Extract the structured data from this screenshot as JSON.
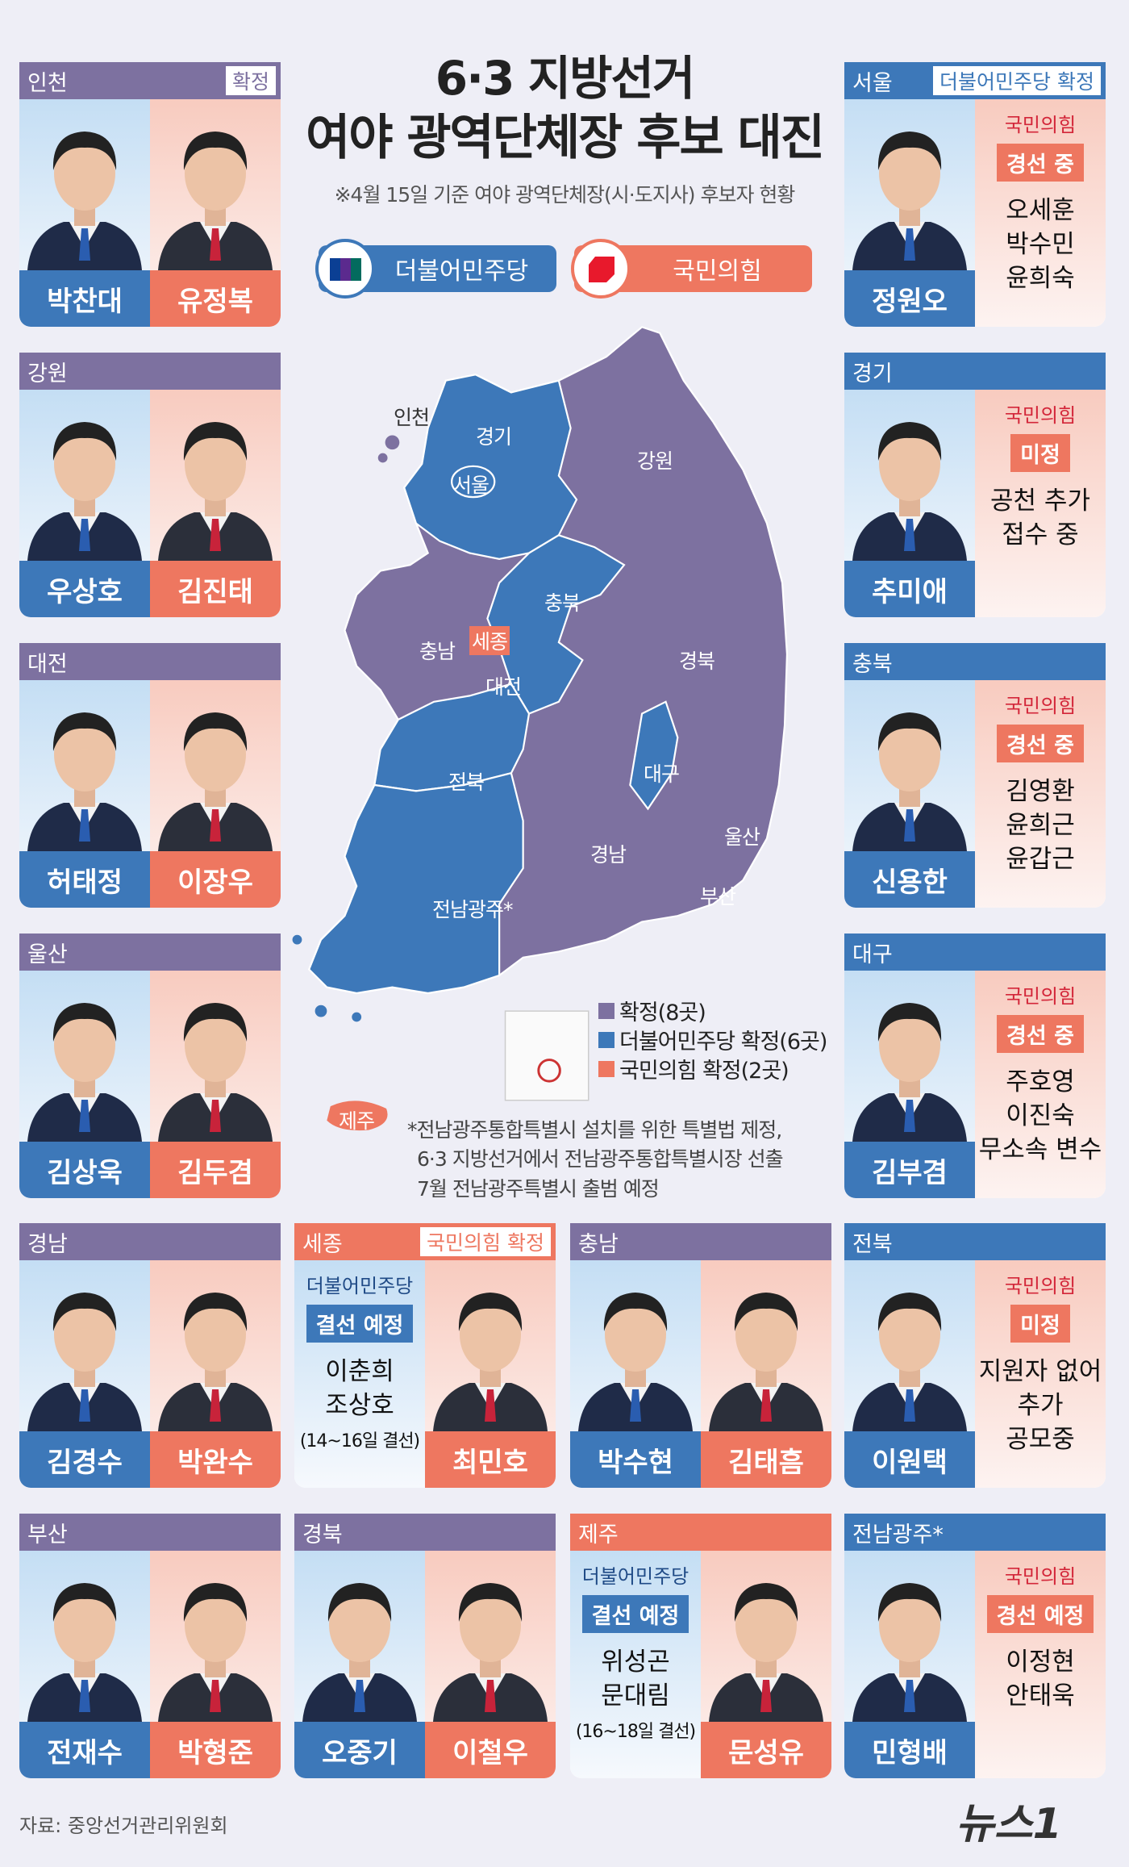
{
  "title": {
    "line1": "6·3 지방선거",
    "line2": "여야 광역단체장 후보 대진"
  },
  "subtitle": "※4월 15일 기준 여야 광역단체장(시·도지사) 후보자 현황",
  "parties": {
    "dem": "더불어민주당",
    "ppp": "국민의힘"
  },
  "colors": {
    "both_header": "#7d71a0",
    "dem": "#3d78b9",
    "ppp": "#ee7760",
    "ppp_text": "#d32639",
    "dem_text": "#1f4a86",
    "background": "#eeeef6"
  },
  "map": {
    "labels": {
      "incheon": "인천",
      "gyeonggi": "경기",
      "seoul": "서울",
      "gangwon": "강원",
      "chungbuk": "충북",
      "chungnam": "충남",
      "sejong": "세종",
      "daejeon": "대전",
      "gyeongbuk": "경북",
      "jeonbuk": "전북",
      "daegu": "대구",
      "ulsan": "울산",
      "gyeongnam": "경남",
      "busan": "부산",
      "jeonnam": "전남광주*",
      "jeju": "제주"
    },
    "legend": [
      "확정(8곳)",
      "더불어민주당 확정(6곳)",
      "국민의힘 확정(2곳)"
    ],
    "footnote": [
      "*전남광주통합특별시 설치를 위한 특별법 제정,",
      "6·3 지방선거에서 전남광주통합특별시장 선출",
      "7월 전남광주특별시 출범 예정"
    ]
  },
  "cards": [
    {
      "region": "인천",
      "badge": "확정",
      "type": "both",
      "dem_name": "박찬대",
      "ppp_name": "유정복"
    },
    {
      "region": "강원",
      "type": "both",
      "dem_name": "우상호",
      "ppp_name": "김진태"
    },
    {
      "region": "대전",
      "type": "both",
      "dem_name": "허태정",
      "ppp_name": "이장우"
    },
    {
      "region": "울산",
      "type": "both",
      "dem_name": "김상욱",
      "ppp_name": "김두겸"
    },
    {
      "region": "서울",
      "badge": "더불어민주당 확정",
      "type": "dem",
      "dem_name": "정원오",
      "pending": {
        "party": "국민의힘",
        "status": "경선 중",
        "names": [
          "오세훈",
          "박수민",
          "윤희숙"
        ]
      }
    },
    {
      "region": "경기",
      "type": "dem",
      "dem_name": "추미애",
      "pending": {
        "party": "국민의힘",
        "status": "미정",
        "names": [
          "공천 추가",
          "접수 중"
        ]
      }
    },
    {
      "region": "충북",
      "type": "dem",
      "dem_name": "신용한",
      "pending": {
        "party": "국민의힘",
        "status": "경선 중",
        "names": [
          "김영환",
          "윤희근",
          "윤갑근"
        ]
      }
    },
    {
      "region": "대구",
      "type": "dem",
      "dem_name": "김부겸",
      "pending": {
        "party": "국민의힘",
        "status": "경선 중",
        "names": [
          "주호영",
          "이진숙",
          "무소속 변수"
        ]
      }
    },
    {
      "region": "경남",
      "type": "both",
      "dem_name": "김경수",
      "ppp_name": "박완수"
    },
    {
      "region": "세종",
      "badge": "국민의힘 확정",
      "type": "ppp",
      "ppp_name": "최민호",
      "pending": {
        "party": "더불어민주당",
        "status": "결선 예정",
        "names": [
          "이춘희",
          "조상호"
        ],
        "note": "(14~16일 결선)"
      }
    },
    {
      "region": "충남",
      "type": "both",
      "dem_name": "박수현",
      "ppp_name": "김태흠"
    },
    {
      "region": "전북",
      "type": "dem",
      "dem_name": "이원택",
      "pending": {
        "party": "국민의힘",
        "status": "미정",
        "names": [
          "지원자 없어",
          "추가",
          "공모중"
        ]
      }
    },
    {
      "region": "부산",
      "type": "both",
      "dem_name": "전재수",
      "ppp_name": "박형준"
    },
    {
      "region": "경북",
      "type": "both",
      "dem_name": "오중기",
      "ppp_name": "이철우"
    },
    {
      "region": "제주",
      "type": "ppp",
      "ppp_name": "문성유",
      "pending": {
        "party": "더불어민주당",
        "status": "결선 예정",
        "names": [
          "위성곤",
          "문대림"
        ],
        "note": "(16~18일 결선)"
      }
    },
    {
      "region": "전남광주*",
      "type": "dem",
      "dem_name": "민형배",
      "pending": {
        "party": "국민의힘",
        "status": "경선 예정",
        "names": [
          "이정현",
          "안태욱"
        ]
      }
    }
  ],
  "footer": {
    "source": "자료: 중앙선거관리위원회",
    "logo": "뉴스1"
  }
}
